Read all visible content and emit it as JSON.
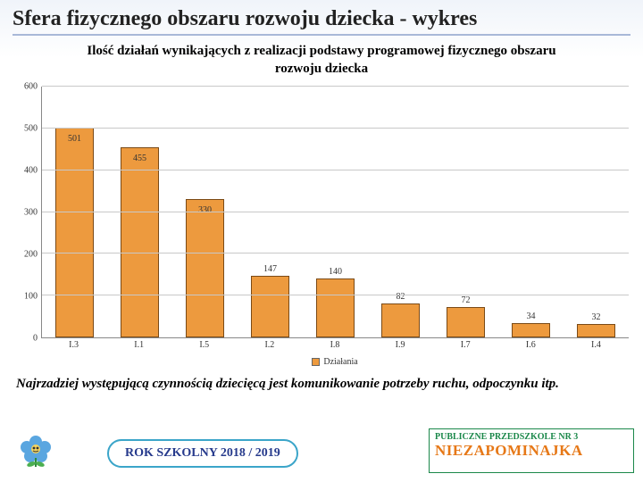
{
  "title": "Sfera fizycznego obszaru rozwoju dziecka - wykres",
  "subtitle": "Ilość działań wynikających z realizacji podstawy programowej fizycznego obszaru rozwoju dziecka",
  "chart": {
    "type": "bar",
    "ylim": [
      0,
      600
    ],
    "ytick_step": 100,
    "yticks": [
      0,
      100,
      200,
      300,
      400,
      500,
      600
    ],
    "categories": [
      "I.3",
      "I.1",
      "I.5",
      "I.2",
      "I.8",
      "I.9",
      "I.7",
      "I.6",
      "I.4"
    ],
    "values": [
      501,
      455,
      330,
      147,
      140,
      82,
      72,
      34,
      32
    ],
    "bar_color": "#ed9a3e",
    "bar_border": "#7a4a16",
    "grid_color": "#c8c8c8",
    "background_color": "#ffffff",
    "value_fontsize": 10,
    "axis_fontsize": 10,
    "legend_label": "Działania",
    "title_fontsize": 15
  },
  "footnote": "Najrzadziej występującą czynnością dziecięcą jest komunikowanie potrzeby ruchu, odpoczynku itp.",
  "footer": {
    "year_text": "ROK SZKOLNY 2018 / 2019",
    "logo_line1": "PUBLICZNE PRZEDSZKOLE NR 3",
    "logo_line2": "NIEZAPOMINAJKA",
    "logo_line1_color": "#1b884a",
    "logo_line2_color": "#e67817",
    "year_border": "#3ba5c9",
    "year_text_color": "#263a8c"
  }
}
